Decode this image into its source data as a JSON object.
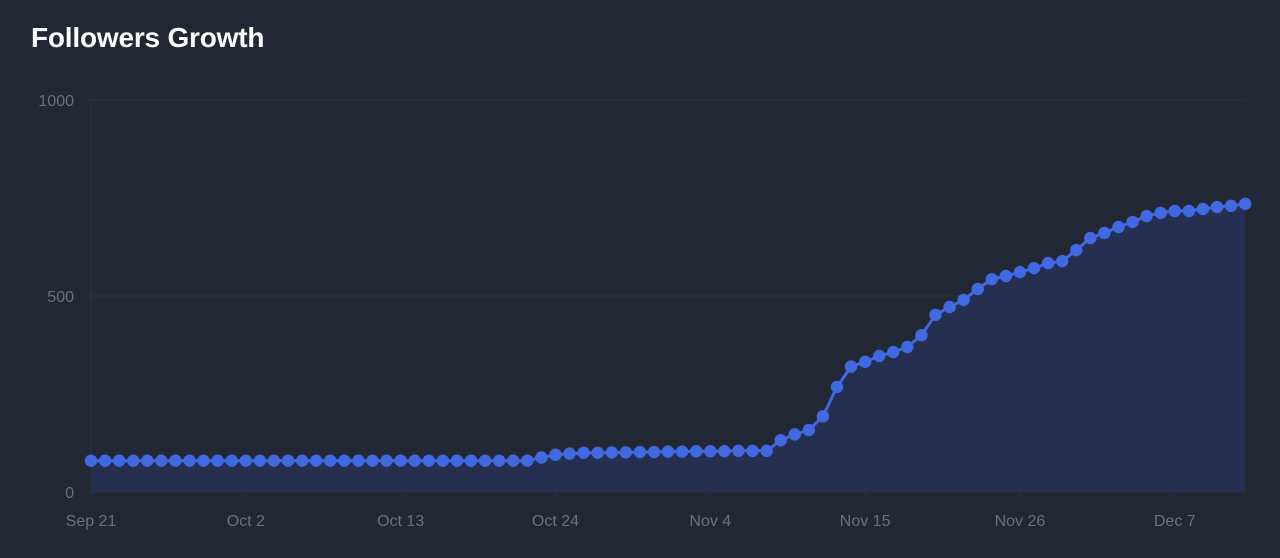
{
  "title": "Followers Growth",
  "colors": {
    "background": "#222735",
    "line": "#4169e1",
    "marker": "#4169e1",
    "area": "#253050",
    "grid": "#2c3141",
    "tick_label": "#6e727c",
    "title": "#ffffff"
  },
  "chart_data": {
    "type": "area",
    "title": "Followers Growth",
    "xlabel": "",
    "ylabel": "",
    "ylim": [
      0,
      1000
    ],
    "y_ticks": [
      0,
      500,
      1000
    ],
    "x_tick_labels": [
      "Sep 21",
      "Oct 2",
      "Oct 13",
      "Oct 24",
      "Nov 4",
      "Nov 15",
      "Nov 26",
      "Dec 7"
    ],
    "x_tick_day_index": [
      0,
      11,
      22,
      33,
      44,
      55,
      66,
      77
    ],
    "x_start": "Sep 21",
    "x_end": "Dec 12",
    "grid": true,
    "legend": false,
    "markers": true,
    "series": [
      {
        "name": "Followers",
        "values": [
          80,
          80,
          80,
          80,
          80,
          80,
          80,
          80,
          80,
          80,
          80,
          80,
          80,
          80,
          80,
          80,
          80,
          80,
          80,
          80,
          80,
          80,
          80,
          80,
          80,
          80,
          80,
          80,
          80,
          80,
          80,
          80,
          88,
          95,
          98,
          100,
          100,
          101,
          101,
          102,
          102,
          103,
          103,
          104,
          104,
          104,
          105,
          105,
          105,
          132,
          147,
          158,
          193,
          268,
          320,
          332,
          347,
          357,
          370,
          400,
          452,
          472,
          490,
          518,
          543,
          551,
          561,
          571,
          584,
          589,
          617,
          648,
          661,
          676,
          689,
          704,
          712,
          717,
          717,
          722,
          727,
          730,
          735
        ]
      }
    ]
  }
}
